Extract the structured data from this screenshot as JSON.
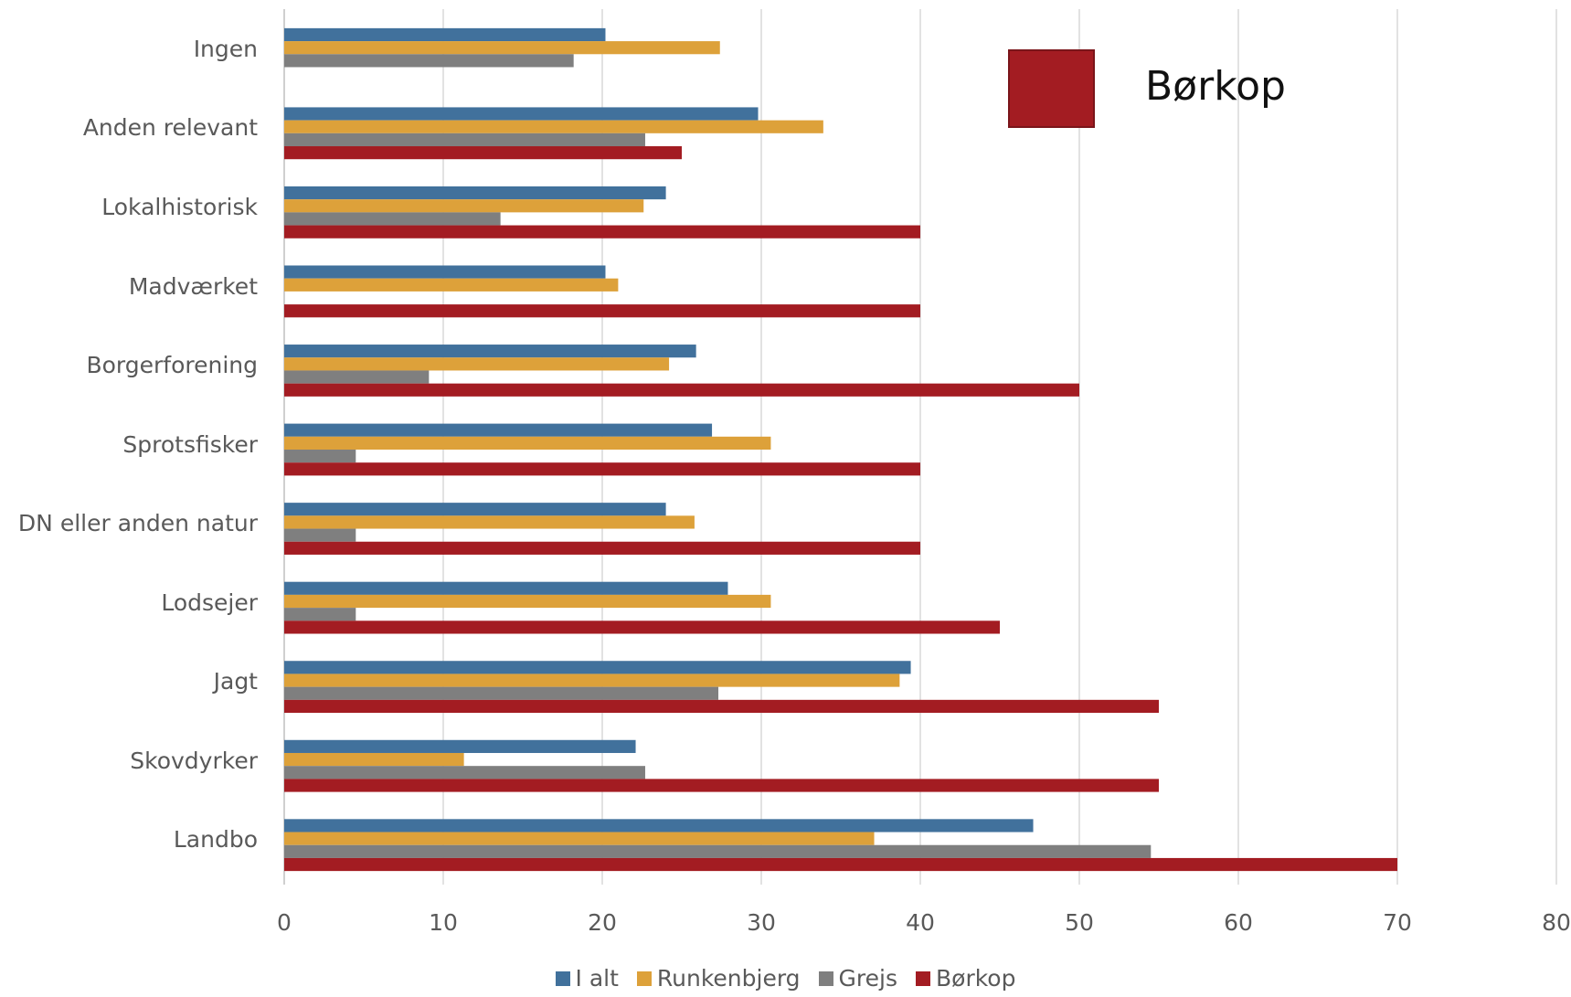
{
  "chart_data": {
    "type": "bar",
    "orientation": "horizontal",
    "categories": [
      "Ingen",
      "Anden relevant",
      "Lokalhistorisk",
      "Madværket",
      "Borgerforening",
      "Sprotsfisker",
      "DN eller anden natur",
      "Lodsejer",
      "Jagt",
      "Skovdyrker",
      "Landbo"
    ],
    "series": [
      {
        "name": "I alt",
        "color": "#41719c",
        "values": [
          20.2,
          29.8,
          24.0,
          20.2,
          25.9,
          26.9,
          24.0,
          27.9,
          39.4,
          22.1,
          47.1
        ]
      },
      {
        "name": "Runkenbjerg",
        "color": "#dda13a",
        "values": [
          27.4,
          33.9,
          22.6,
          21.0,
          24.2,
          30.6,
          25.8,
          30.6,
          38.7,
          11.3,
          37.1
        ]
      },
      {
        "name": "Grejs",
        "color": "#7f7f7f",
        "values": [
          18.2,
          22.7,
          13.6,
          0,
          9.1,
          4.5,
          4.5,
          4.5,
          27.3,
          22.7,
          54.5
        ]
      },
      {
        "name": "Børkop",
        "color": "#a31c22",
        "values": [
          0,
          25,
          40,
          40,
          50,
          40,
          40,
          45,
          55,
          55,
          70
        ]
      }
    ],
    "xlim": [
      0,
      80
    ],
    "xticks": [
      "0",
      "10",
      "20",
      "30",
      "40",
      "50",
      "60",
      "70",
      "80"
    ],
    "grid": true,
    "legend_position": "bottom",
    "callout": {
      "label": "Børkop",
      "color": "#a31c22"
    }
  }
}
